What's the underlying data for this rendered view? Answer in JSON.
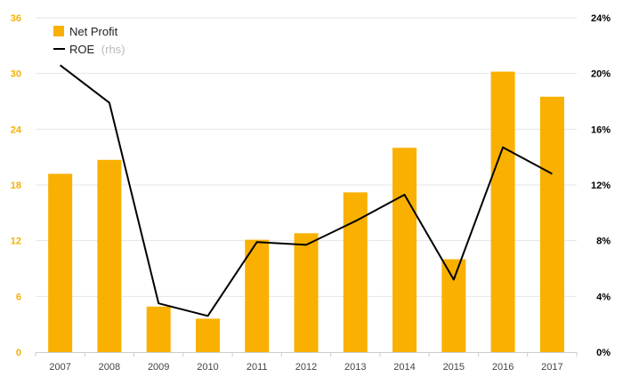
{
  "chart_data": {
    "type": "bar",
    "categories": [
      "2007",
      "2008",
      "2009",
      "2010",
      "2011",
      "2012",
      "2013",
      "2014",
      "2015",
      "2016",
      "2017"
    ],
    "series": [
      {
        "name": "Net Profit",
        "type": "bar",
        "axis": "left",
        "color": "#f9b000",
        "values": [
          19.2,
          20.7,
          4.9,
          3.6,
          12.1,
          12.8,
          17.2,
          22.0,
          10.0,
          30.2,
          27.5
        ]
      },
      {
        "name": "ROE",
        "name_suffix": "(rhs)",
        "type": "line",
        "axis": "right",
        "color": "#000000",
        "values": [
          20.6,
          17.9,
          3.5,
          2.6,
          7.9,
          7.7,
          9.4,
          11.3,
          5.2,
          14.7,
          12.8
        ]
      }
    ],
    "y_left": {
      "ylim": [
        0,
        36
      ],
      "ticks": [
        "0",
        "6",
        "12",
        "18",
        "24",
        "30",
        "36"
      ]
    },
    "y_right": {
      "ylim": [
        0,
        24
      ],
      "ticks": [
        "0%",
        "4%",
        "8%",
        "12%",
        "16%",
        "20%",
        "24%"
      ]
    },
    "title": "",
    "xlabel": "",
    "ylabel": "",
    "grid": true,
    "legend": "top-left",
    "colors": {
      "left_ticks": "#f5b000",
      "right_ticks": "#000000",
      "grid": "#e6e6e6"
    }
  }
}
